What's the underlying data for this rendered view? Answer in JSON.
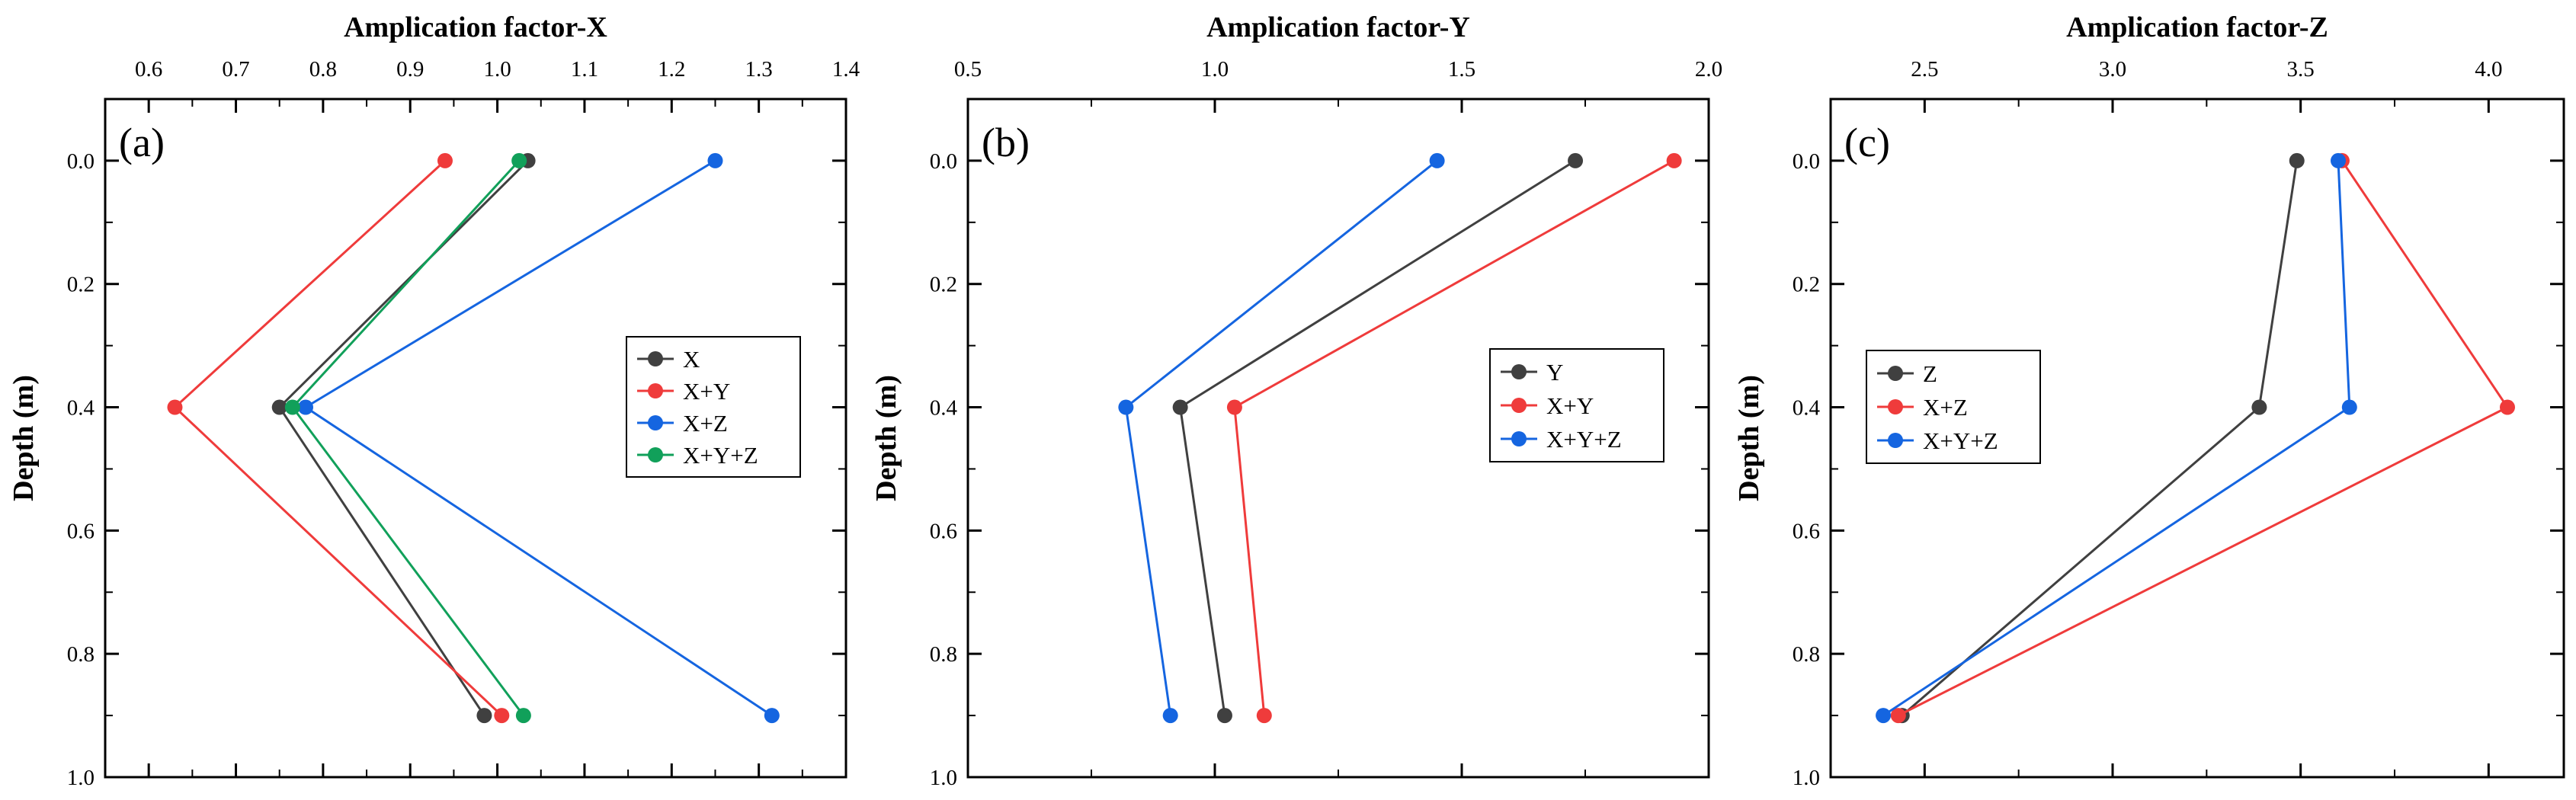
{
  "chart_data": [
    {
      "type": "line",
      "panel_label": "(a)",
      "title": "Amplication factor-X",
      "ylabel": "Depth (m)",
      "xlim": [
        0.55,
        1.4
      ],
      "xticks": [
        "0.6",
        "0.7",
        "0.8",
        "0.9",
        "1.0",
        "1.1",
        "1.2",
        "1.3",
        "1.4"
      ],
      "xtick_values": [
        0.6,
        0.7,
        0.8,
        0.9,
        1.0,
        1.1,
        1.2,
        1.3,
        1.4
      ],
      "ylim": [
        -0.1,
        1.0
      ],
      "yticks": [
        "0.0",
        "0.2",
        "0.4",
        "0.6",
        "0.8",
        "1.0"
      ],
      "ytick_values": [
        0.0,
        0.2,
        0.4,
        0.6,
        0.8,
        1.0
      ],
      "legend_position": "middle-right",
      "series": [
        {
          "name": "X",
          "color": "#404040",
          "depth": [
            0.0,
            0.4,
            0.9
          ],
          "values": [
            1.035,
            0.75,
            0.985
          ]
        },
        {
          "name": "X+Y",
          "color": "#ef3b3b",
          "depth": [
            0.0,
            0.4,
            0.9
          ],
          "values": [
            0.94,
            0.63,
            1.005
          ]
        },
        {
          "name": "X+Z",
          "color": "#1565e0",
          "depth": [
            0.0,
            0.4,
            0.9
          ],
          "values": [
            1.25,
            0.78,
            1.315
          ]
        },
        {
          "name": "X+Y+Z",
          "color": "#11a05a",
          "depth": [
            0.0,
            0.4,
            0.9
          ],
          "values": [
            1.025,
            0.765,
            1.03
          ]
        }
      ]
    },
    {
      "type": "line",
      "panel_label": "(b)",
      "title": "Amplication factor-Y",
      "ylabel": "Depth (m)",
      "xlim": [
        0.5,
        2.0
      ],
      "xticks": [
        "0.5",
        "1.0",
        "1.5",
        "2.0"
      ],
      "xtick_values": [
        0.5,
        1.0,
        1.5,
        2.0
      ],
      "ylim": [
        -0.1,
        1.0
      ],
      "yticks": [
        "0.0",
        "0.2",
        "0.4",
        "0.6",
        "0.8",
        "1.0"
      ],
      "ytick_values": [
        0.0,
        0.2,
        0.4,
        0.6,
        0.8,
        1.0
      ],
      "legend_position": "middle-right",
      "series": [
        {
          "name": "Y",
          "color": "#404040",
          "depth": [
            0.0,
            0.4,
            0.9
          ],
          "values": [
            1.73,
            0.93,
            1.02
          ]
        },
        {
          "name": "X+Y",
          "color": "#ef3b3b",
          "depth": [
            0.0,
            0.4,
            0.9
          ],
          "values": [
            1.93,
            1.04,
            1.1
          ]
        },
        {
          "name": "X+Y+Z",
          "color": "#1565e0",
          "depth": [
            0.0,
            0.4,
            0.9
          ],
          "values": [
            1.45,
            0.82,
            0.91
          ]
        }
      ]
    },
    {
      "type": "line",
      "panel_label": "(c)",
      "title": "Amplication factor-Z",
      "ylabel": "Depth (m)",
      "xlim": [
        2.25,
        4.2
      ],
      "xticks": [
        "2.5",
        "3.0",
        "3.5",
        "4.0"
      ],
      "xtick_values": [
        2.5,
        3.0,
        3.5,
        4.0
      ],
      "ylim": [
        -0.1,
        1.0
      ],
      "yticks": [
        "0.0",
        "0.2",
        "0.4",
        "0.6",
        "0.8",
        "1.0"
      ],
      "ytick_values": [
        0.0,
        0.2,
        0.4,
        0.6,
        0.8,
        1.0
      ],
      "legend_position": "middle-left",
      "series": [
        {
          "name": "Z",
          "color": "#404040",
          "depth": [
            0.0,
            0.4,
            0.9
          ],
          "values": [
            3.49,
            3.39,
            2.44
          ]
        },
        {
          "name": "X+Z",
          "color": "#ef3b3b",
          "depth": [
            0.0,
            0.4,
            0.9
          ],
          "values": [
            3.61,
            4.05,
            2.43
          ]
        },
        {
          "name": "X+Y+Z",
          "color": "#1565e0",
          "depth": [
            0.0,
            0.4,
            0.9
          ],
          "values": [
            3.6,
            3.63,
            2.39
          ]
        }
      ]
    }
  ]
}
